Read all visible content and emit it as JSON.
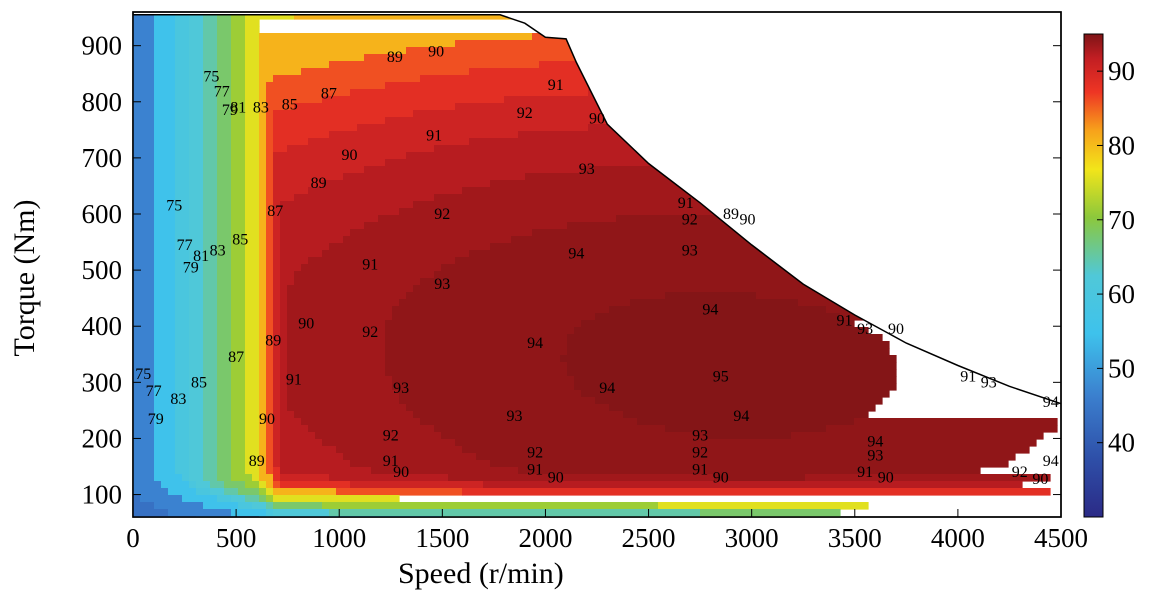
{
  "chart_data": {
    "type": "heatmap",
    "subtype": "filled-contour efficiency map",
    "title": "",
    "xlabel": "Speed (r/min)",
    "ylabel": "Torque (Nm)",
    "xlim": [
      0,
      4500
    ],
    "ylim": [
      60,
      960
    ],
    "x_ticks": [
      "0",
      "500",
      "1000",
      "1500",
      "2000",
      "2500",
      "3000",
      "3500",
      "4000",
      "4500"
    ],
    "y_ticks": [
      "100",
      "200",
      "300",
      "400",
      "500",
      "600",
      "700",
      "800",
      "900"
    ],
    "colorbar": {
      "range": [
        30,
        95
      ],
      "ticks": [
        "90",
        "80",
        "70",
        "60",
        "50",
        "40"
      ],
      "colormap": "jet"
    },
    "max_torque_envelope": {
      "speed": [
        0,
        1780,
        1900,
        2000,
        2100,
        2150,
        2300,
        2500,
        2750,
        3000,
        3250,
        3500,
        3750,
        4000,
        4250,
        4500
      ],
      "torque": [
        955,
        955,
        940,
        915,
        912,
        870,
        760,
        690,
        620,
        545,
        475,
        420,
        370,
        330,
        293,
        262
      ]
    },
    "contour_levels": [
      75,
      77,
      79,
      81,
      83,
      85,
      87,
      89,
      90,
      91,
      92,
      93,
      94,
      95
    ],
    "contour_labels": [
      {
        "text": "75",
        "x": 380,
        "y": 845
      },
      {
        "text": "77",
        "x": 430,
        "y": 818
      },
      {
        "text": "79",
        "x": 470,
        "y": 785
      },
      {
        "text": "81",
        "x": 510,
        "y": 790
      },
      {
        "text": "83",
        "x": 620,
        "y": 790
      },
      {
        "text": "85",
        "x": 760,
        "y": 795
      },
      {
        "text": "87",
        "x": 950,
        "y": 815
      },
      {
        "text": "89",
        "x": 1270,
        "y": 880
      },
      {
        "text": "90",
        "x": 1470,
        "y": 890
      },
      {
        "text": "75",
        "x": 200,
        "y": 615
      },
      {
        "text": "77",
        "x": 250,
        "y": 545
      },
      {
        "text": "79",
        "x": 280,
        "y": 505
      },
      {
        "text": "81",
        "x": 330,
        "y": 525
      },
      {
        "text": "83",
        "x": 410,
        "y": 535
      },
      {
        "text": "85",
        "x": 520,
        "y": 555
      },
      {
        "text": "87",
        "x": 690,
        "y": 605
      },
      {
        "text": "89",
        "x": 900,
        "y": 655
      },
      {
        "text": "90",
        "x": 1050,
        "y": 705
      },
      {
        "text": "91",
        "x": 1460,
        "y": 740
      },
      {
        "text": "92",
        "x": 1900,
        "y": 780
      },
      {
        "text": "93",
        "x": 2200,
        "y": 680
      },
      {
        "text": "91",
        "x": 2050,
        "y": 830
      },
      {
        "text": "90",
        "x": 2250,
        "y": 770
      },
      {
        "text": "75",
        "x": 50,
        "y": 315
      },
      {
        "text": "77",
        "x": 100,
        "y": 285
      },
      {
        "text": "79",
        "x": 110,
        "y": 235
      },
      {
        "text": "83",
        "x": 220,
        "y": 270
      },
      {
        "text": "85",
        "x": 320,
        "y": 300
      },
      {
        "text": "87",
        "x": 500,
        "y": 345
      },
      {
        "text": "89",
        "x": 680,
        "y": 375
      },
      {
        "text": "90",
        "x": 840,
        "y": 405
      },
      {
        "text": "91",
        "x": 1150,
        "y": 510
      },
      {
        "text": "92",
        "x": 1500,
        "y": 600
      },
      {
        "text": "93",
        "x": 1500,
        "y": 475
      },
      {
        "text": "91",
        "x": 780,
        "y": 305
      },
      {
        "text": "90",
        "x": 650,
        "y": 235
      },
      {
        "text": "89",
        "x": 600,
        "y": 160
      },
      {
        "text": "92",
        "x": 1150,
        "y": 390
      },
      {
        "text": "93",
        "x": 1300,
        "y": 290
      },
      {
        "text": "94",
        "x": 1950,
        "y": 370
      },
      {
        "text": "94",
        "x": 2150,
        "y": 530
      },
      {
        "text": "94",
        "x": 2300,
        "y": 290
      },
      {
        "text": "94",
        "x": 2800,
        "y": 430
      },
      {
        "text": "95",
        "x": 2850,
        "y": 310
      },
      {
        "text": "93",
        "x": 1850,
        "y": 240
      },
      {
        "text": "92",
        "x": 1250,
        "y": 205
      },
      {
        "text": "91",
        "x": 1250,
        "y": 160
      },
      {
        "text": "90",
        "x": 1300,
        "y": 140
      },
      {
        "text": "92",
        "x": 1950,
        "y": 175
      },
      {
        "text": "91",
        "x": 1950,
        "y": 145
      },
      {
        "text": "90",
        "x": 2050,
        "y": 130
      },
      {
        "text": "94",
        "x": 2950,
        "y": 240
      },
      {
        "text": "93",
        "x": 2750,
        "y": 205
      },
      {
        "text": "92",
        "x": 2750,
        "y": 175
      },
      {
        "text": "91",
        "x": 2750,
        "y": 145
      },
      {
        "text": "90",
        "x": 2850,
        "y": 130
      },
      {
        "text": "94",
        "x": 3600,
        "y": 195
      },
      {
        "text": "93",
        "x": 3600,
        "y": 170
      },
      {
        "text": "91",
        "x": 3550,
        "y": 140
      },
      {
        "text": "90",
        "x": 3650,
        "y": 130
      },
      {
        "text": "94",
        "x": 4450,
        "y": 160
      },
      {
        "text": "92",
        "x": 4300,
        "y": 140
      },
      {
        "text": "90",
        "x": 4400,
        "y": 128
      },
      {
        "text": "94",
        "x": 4450,
        "y": 265
      },
      {
        "text": "93",
        "x": 3550,
        "y": 395
      },
      {
        "text": "91",
        "x": 3450,
        "y": 410
      },
      {
        "text": "90",
        "x": 3700,
        "y": 395
      },
      {
        "text": "93",
        "x": 4150,
        "y": 300
      },
      {
        "text": "91",
        "x": 4050,
        "y": 310
      },
      {
        "text": "89",
        "x": 2900,
        "y": 600
      },
      {
        "text": "90",
        "x": 2980,
        "y": 590
      },
      {
        "text": "91",
        "x": 2680,
        "y": 620
      },
      {
        "text": "92",
        "x": 2700,
        "y": 590
      },
      {
        "text": "93",
        "x": 2700,
        "y": 535
      }
    ]
  }
}
